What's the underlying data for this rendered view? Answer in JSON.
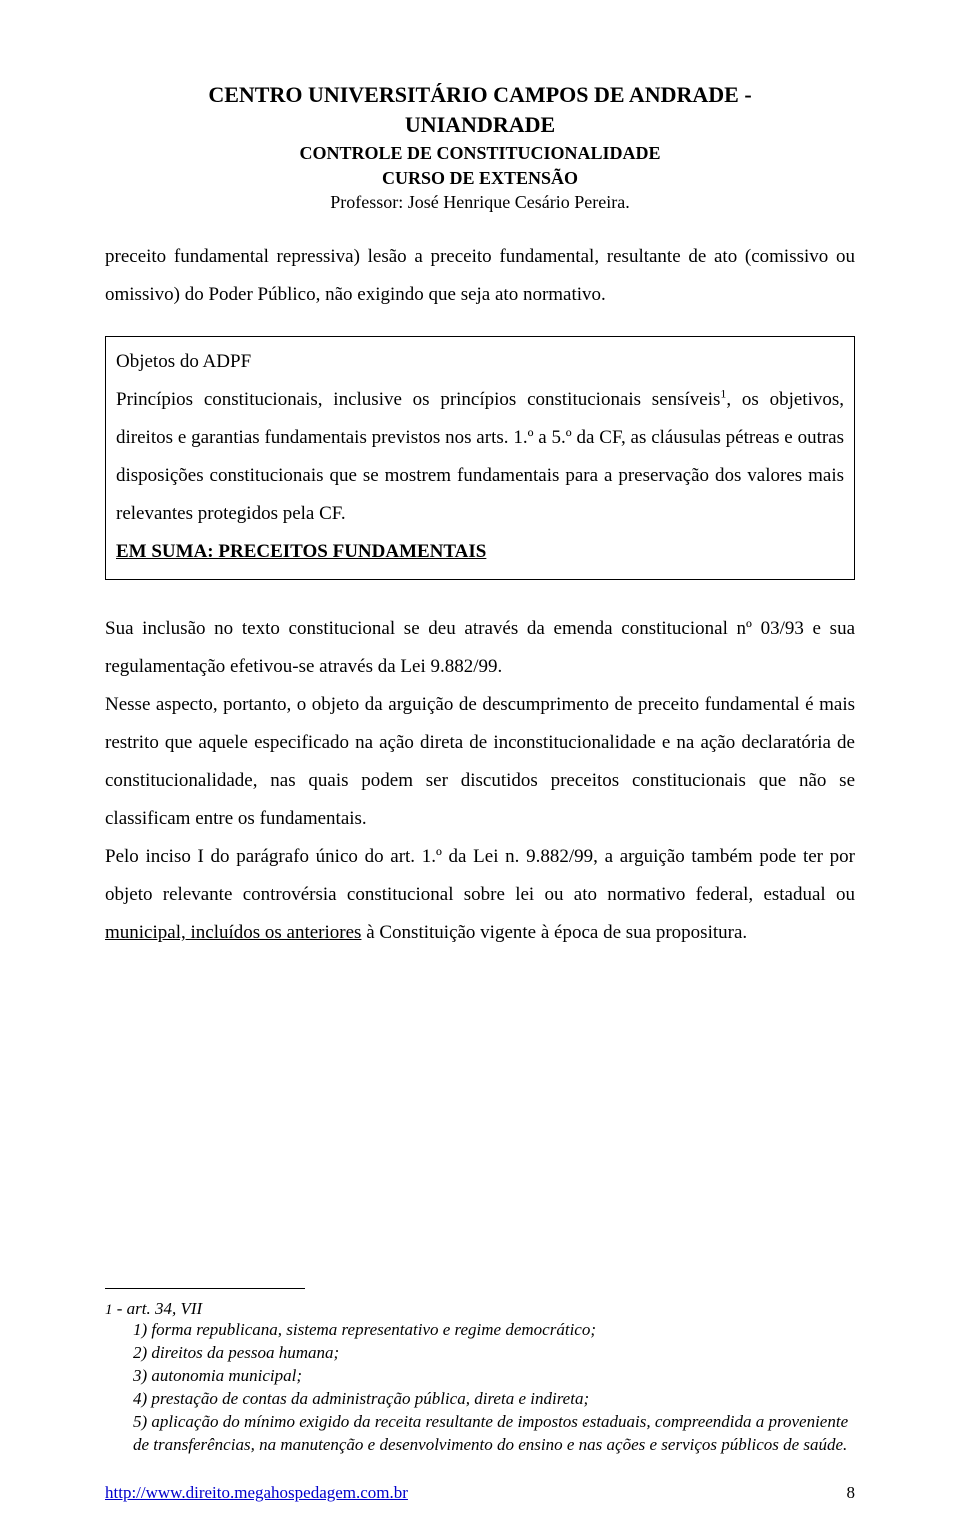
{
  "header": {
    "line1": "CENTRO UNIVERSITÁRIO CAMPOS DE ANDRADE -",
    "line2": "UNIANDRADE",
    "line3": "CONTROLE DE CONSTITUCIONALIDADE",
    "line4": "CURSO DE EXTENSÃO",
    "line5": "Professor: José Henrique Cesário Pereira."
  },
  "para1": "preceito fundamental repressiva) lesão a preceito fundamental, resultante de ato (comissivo ou omissivo) do Poder Público,  não exigindo que seja ato normativo.",
  "box": {
    "title": "Objetos do ADPF",
    "body_a": "Princípios constitucionais, inclusive os princípios constitucionais sensíveis",
    "body_sup": "1",
    "body_b": ", os objetivos, direitos e garantias fundamentais previstos nos arts. 1.º a 5.º da CF, as cláusulas pétreas e outras disposições constitucionais que se mostrem fundamentais para a preservação dos valores mais relevantes protegidos pela CF.",
    "emph": "EM SUMA: PRECEITOS FUNDAMENTAIS"
  },
  "para2": "Sua inclusão no texto constitucional se deu através da emenda constitucional nº 03/93 e sua regulamentação efetivou-se através da Lei 9.882/99.",
  "para3": "Nesse aspecto, portanto, o objeto da arguição de descumprimento de preceito fundamental é mais restrito que aquele especificado na ação direta de inconstitucionalidade e na ação declaratória de constitucionalidade, nas quais podem ser discutidos preceitos constitucionais que não se classificam entre os fundamentais.",
  "para4_a": "Pelo inciso I do parágrafo único do art. 1.º da Lei n. 9.882/99, a arguição também pode ter por objeto relevante controvérsia constitucional sobre lei ou ato normativo federal, estadual ou ",
  "para4_u": "municipal, incluídos os anteriores",
  "para4_b": " à Constituição vigente à época de sua propositura.",
  "footnote": {
    "marker": "1",
    "head": " - art. 34, VII",
    "items": [
      "1) forma republicana, sistema representativo e regime democrático;",
      "2) direitos da pessoa humana;",
      "3)  autonomia municipal;",
      "4) prestação de contas da administração pública,  direta e indireta;",
      "5) aplicação do mínimo exigido da receita resultante de impostos estaduais, compreendida a proveniente de transferências, na manutenção e desenvolvimento do ensino e nas ações e serviços públicos de saúde."
    ]
  },
  "footer": {
    "url": "http://www.direito.megahospedagem.com.br",
    "page": "8"
  }
}
